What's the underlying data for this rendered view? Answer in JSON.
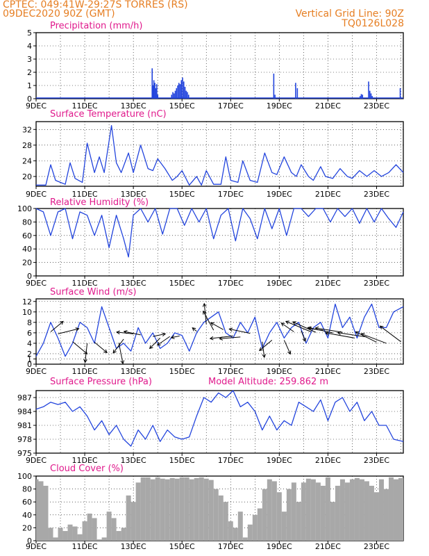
{
  "header": {
    "line1": "CPTEC:   049:41W-29:27S   TORRES (RS)",
    "line2": "09DEC2020 90Z (GMT)",
    "grid_line": "Vertical Grid Line: 90Z",
    "code": "TQ0126L028"
  },
  "x_ticks": [
    "9DEC",
    "11DEC",
    "13DEC",
    "15DEC",
    "17DEC",
    "19DEC",
    "21DEC",
    "23DEC"
  ],
  "colors": {
    "series": "#2244dd",
    "title": "#e0198c",
    "header": "#e67e22",
    "cloud": "#a8a8a8"
  },
  "chart_data": [
    {
      "type": "bar",
      "title": "Precipitation (mm/h)",
      "ylim": [
        0,
        5
      ],
      "yticks": [
        0,
        1,
        2,
        3,
        4,
        5
      ],
      "x_range_days": [
        9,
        24.1
      ],
      "events": [
        [
          13.75,
          2.3
        ],
        [
          13.78,
          1.0
        ],
        [
          13.82,
          1.4
        ],
        [
          13.86,
          1.2
        ],
        [
          13.9,
          0.8
        ],
        [
          13.94,
          1.1
        ],
        [
          13.98,
          0.3
        ],
        [
          14.55,
          0.3
        ],
        [
          14.6,
          0.5
        ],
        [
          14.65,
          0.4
        ],
        [
          14.7,
          0.6
        ],
        [
          14.75,
          0.8
        ],
        [
          14.8,
          1.0
        ],
        [
          14.85,
          1.2
        ],
        [
          14.9,
          1.1
        ],
        [
          14.95,
          1.4
        ],
        [
          15.0,
          1.6
        ],
        [
          15.05,
          1.3
        ],
        [
          15.1,
          0.9
        ],
        [
          15.15,
          0.6
        ],
        [
          15.2,
          0.5
        ],
        [
          15.25,
          0.3
        ],
        [
          18.75,
          1.9
        ],
        [
          18.8,
          0.3
        ],
        [
          19.65,
          1.2
        ],
        [
          19.72,
          0.8
        ],
        [
          22.3,
          0.2
        ],
        [
          22.35,
          0.35
        ],
        [
          22.4,
          0.3
        ],
        [
          22.65,
          1.3
        ],
        [
          22.7,
          0.6
        ],
        [
          22.75,
          0.4
        ],
        [
          22.8,
          0.2
        ],
        [
          23.95,
          0.8
        ]
      ]
    },
    {
      "type": "line",
      "title": "Surface Temperature (nC)",
      "ylim": [
        17.5,
        34
      ],
      "yticks": [
        20,
        24,
        28,
        32
      ],
      "x": [
        9,
        9.4,
        9.6,
        9.8,
        10.0,
        10.2,
        10.4,
        10.6,
        10.9,
        11.1,
        11.4,
        11.6,
        11.8,
        12.1,
        12.3,
        12.5,
        12.8,
        13.0,
        13.3,
        13.6,
        13.8,
        14.0,
        14.3,
        14.6,
        14.8,
        15.0,
        15.3,
        15.6,
        15.8,
        16.0,
        16.3,
        16.6,
        16.8,
        17.0,
        17.3,
        17.5,
        17.8,
        18.1,
        18.4,
        18.7,
        18.9,
        19.2,
        19.5,
        19.7,
        19.9,
        20.2,
        20.4,
        20.7,
        20.9,
        21.2,
        21.5,
        21.8,
        22.0,
        22.3,
        22.6,
        22.9,
        23.2,
        23.5,
        23.8,
        24.1
      ],
      "y": [
        17.8,
        17.8,
        23,
        19,
        18.5,
        18.0,
        23.5,
        19.5,
        18.5,
        28.5,
        21,
        25,
        21,
        33,
        23.5,
        21,
        26,
        21,
        28,
        22,
        21.5,
        24.5,
        22,
        19,
        20,
        21.5,
        17.8,
        20,
        17.8,
        21.5,
        18,
        18,
        25,
        19,
        18.5,
        24,
        19,
        18.5,
        26,
        21,
        20.5,
        25,
        21,
        20,
        23,
        20,
        19,
        22.5,
        20,
        19.5,
        22,
        20,
        19.5,
        21.5,
        20,
        21.5,
        20,
        21,
        23,
        21
      ]
    },
    {
      "type": "line",
      "title": "Relative Humidity (%)",
      "ylim": [
        0,
        100
      ],
      "yticks": [
        0,
        20,
        40,
        60,
        80,
        100
      ],
      "x": [
        9,
        9.3,
        9.6,
        9.9,
        10.2,
        10.5,
        10.8,
        11.1,
        11.4,
        11.7,
        12.0,
        12.3,
        12.6,
        12.8,
        13.0,
        13.3,
        13.6,
        13.9,
        14.2,
        14.5,
        14.8,
        15.1,
        15.4,
        15.7,
        16.0,
        16.3,
        16.6,
        16.9,
        17.2,
        17.5,
        17.8,
        18.1,
        18.4,
        18.7,
        19.0,
        19.3,
        19.6,
        19.9,
        20.2,
        20.5,
        20.8,
        21.1,
        21.4,
        21.7,
        22.0,
        22.3,
        22.6,
        22.9,
        23.2,
        23.5,
        23.8,
        24.1
      ],
      "y": [
        100,
        95,
        60,
        95,
        100,
        55,
        95,
        90,
        60,
        90,
        42,
        90,
        55,
        28,
        90,
        100,
        80,
        100,
        62,
        100,
        100,
        75,
        100,
        80,
        100,
        55,
        90,
        100,
        52,
        100,
        85,
        55,
        100,
        70,
        100,
        60,
        100,
        100,
        88,
        100,
        100,
        80,
        100,
        88,
        100,
        78,
        100,
        80,
        100,
        85,
        72,
        95
      ]
    },
    {
      "type": "line",
      "title": "Surface Wind (m/s)",
      "ylim": [
        0,
        12.5
      ],
      "yticks": [
        0,
        1,
        2,
        4,
        6,
        8,
        10,
        12
      ],
      "x": [
        9,
        9.3,
        9.6,
        9.9,
        10.2,
        10.5,
        10.8,
        11.1,
        11.4,
        11.7,
        12.0,
        12.3,
        12.6,
        12.9,
        13.2,
        13.5,
        13.8,
        14.1,
        14.4,
        14.7,
        15.0,
        15.3,
        15.6,
        15.9,
        16.2,
        16.5,
        16.8,
        17.1,
        17.4,
        17.7,
        18.0,
        18.3,
        18.6,
        18.9,
        19.2,
        19.5,
        19.8,
        20.1,
        20.4,
        20.7,
        21.0,
        21.3,
        21.6,
        21.9,
        22.2,
        22.5,
        22.8,
        23.1,
        23.4,
        23.7,
        24.1
      ],
      "y": [
        1.5,
        4,
        8,
        5,
        1.5,
        4,
        8,
        7,
        4,
        11,
        7,
        3,
        4,
        2.5,
        7,
        4,
        6,
        3,
        4,
        6,
        5.5,
        2.5,
        6,
        8,
        9,
        10,
        6,
        5,
        8,
        6,
        9,
        3,
        6,
        8,
        5,
        7,
        8,
        4,
        7,
        8,
        5,
        11.5,
        7,
        9,
        5,
        9,
        11.5,
        7,
        7,
        10,
        11
      ]
    },
    {
      "type": "line",
      "title": "Surface Pressure (hPa)",
      "annotation": "Model Altitude: 259.862 m",
      "ylim": [
        975,
        988.5
      ],
      "yticks": [
        975,
        978,
        981,
        984,
        987
      ],
      "x": [
        9,
        9.3,
        9.6,
        9.9,
        10.2,
        10.5,
        10.8,
        11.1,
        11.4,
        11.7,
        12.0,
        12.3,
        12.6,
        12.9,
        13.2,
        13.5,
        13.8,
        14.1,
        14.4,
        14.7,
        15.0,
        15.3,
        15.6,
        15.9,
        16.2,
        16.5,
        16.8,
        17.1,
        17.4,
        17.7,
        18.0,
        18.3,
        18.6,
        18.9,
        19.2,
        19.5,
        19.8,
        20.1,
        20.4,
        20.7,
        21.0,
        21.3,
        21.6,
        21.9,
        22.2,
        22.5,
        22.8,
        23.1,
        23.4,
        23.7,
        24.1
      ],
      "y": [
        984.5,
        985,
        986,
        985.5,
        986,
        984,
        985,
        983,
        980,
        982,
        979,
        981,
        978,
        976.5,
        980,
        978,
        981,
        977.5,
        980,
        978.5,
        978,
        978.5,
        983,
        987,
        986,
        988,
        987,
        988.5,
        985,
        986,
        984,
        980,
        983,
        980,
        982,
        981,
        986,
        985,
        984,
        986.5,
        982,
        986,
        987,
        984,
        986,
        982,
        984,
        981,
        981,
        978,
        977.5
      ]
    },
    {
      "type": "area",
      "title": "Cloud Cover (%)",
      "ylim": [
        0,
        100
      ],
      "yticks": [
        0,
        20,
        40,
        60,
        80,
        100
      ],
      "x": [
        9,
        9.1,
        9.3,
        9.5,
        9.7,
        9.9,
        10.1,
        10.3,
        10.5,
        10.7,
        10.9,
        11.1,
        11.3,
        11.5,
        11.7,
        11.9,
        12.1,
        12.3,
        12.5,
        12.7,
        12.9,
        13.1,
        13.3,
        13.5,
        13.7,
        13.9,
        14.1,
        14.3,
        14.5,
        14.7,
        14.9,
        15.1,
        15.3,
        15.5,
        15.7,
        15.9,
        16.1,
        16.3,
        16.5,
        16.7,
        16.9,
        17.1,
        17.3,
        17.5,
        17.7,
        17.9,
        18.1,
        18.3,
        18.5,
        18.7,
        18.9,
        19.1,
        19.3,
        19.5,
        19.7,
        19.9,
        20.1,
        20.3,
        20.5,
        20.7,
        20.9,
        21.1,
        21.3,
        21.5,
        21.7,
        21.9,
        22.1,
        22.3,
        22.5,
        22.7,
        22.9,
        23.1,
        23.3,
        23.5,
        23.7,
        23.9,
        24.1
      ],
      "y": [
        95,
        92,
        85,
        20,
        5,
        20,
        15,
        25,
        22,
        10,
        30,
        42,
        35,
        2,
        5,
        45,
        35,
        15,
        20,
        70,
        60,
        90,
        98,
        98,
        95,
        98,
        96,
        95,
        97,
        96,
        98,
        98,
        95,
        97,
        98,
        96,
        94,
        80,
        70,
        60,
        30,
        20,
        45,
        5,
        25,
        40,
        50,
        80,
        95,
        92,
        75,
        45,
        80,
        90,
        60,
        90,
        96,
        95,
        90,
        85,
        98,
        60,
        85,
        95,
        90,
        95,
        97,
        95,
        92,
        85,
        75,
        95,
        80,
        98,
        95,
        97,
        98
      ]
    }
  ],
  "wind_arrows": [
    [
      9.6,
      6.2,
      0.3,
      -0.6
    ],
    [
      9.9,
      5.8,
      0.5,
      -0.3
    ],
    [
      10.5,
      4.3,
      0.35,
      0.7
    ],
    [
      11.1,
      4,
      -0.05,
      1.1
    ],
    [
      11.4,
      4.2,
      0.3,
      0.6
    ],
    [
      12.4,
      4.1,
      0.1,
      1.2
    ],
    [
      12.6,
      4.8,
      -0.25,
      0.8
    ],
    [
      13,
      5.8,
      -0.4,
      -0.1
    ],
    [
      13.3,
      5.6,
      -0.4,
      -0.2
    ],
    [
      13.8,
      5.3,
      0.3,
      -0.15
    ],
    [
      14.1,
      5,
      -0.25,
      0.6
    ],
    [
      14.5,
      5.3,
      -0.3,
      0.5
    ],
    [
      14.9,
      5.4,
      -0.2,
      0.1
    ],
    [
      15.6,
      6.3,
      -0.1,
      -0.2
    ],
    [
      16,
      7.6,
      -0.05,
      -1.2
    ],
    [
      16.3,
      6.5,
      -0.25,
      -1.1
    ],
    [
      16.7,
      6.6,
      -0.3,
      -0.4
    ],
    [
      17.1,
      5.4,
      -0.55,
      0.15
    ],
    [
      17.4,
      5.2,
      -0.5,
      0.1
    ],
    [
      17.8,
      5.9,
      -0.5,
      -0.25
    ],
    [
      18.3,
      4.3,
      0.05,
      0.9
    ],
    [
      18.7,
      4.6,
      -0.3,
      0.6
    ],
    [
      19.2,
      4.6,
      0.15,
      0.8
    ],
    [
      19.6,
      6.2,
      -0.3,
      -0.5
    ],
    [
      19.9,
      6.4,
      0.1,
      0.6
    ],
    [
      20.3,
      6.2,
      -0.6,
      -0.6
    ],
    [
      20.5,
      6.1,
      -0.55,
      -0.6
    ],
    [
      20.8,
      6.5,
      -0.35,
      -0.1
    ],
    [
      21.2,
      6,
      -0.6,
      -0.3
    ],
    [
      21.6,
      6.1,
      -0.65,
      -0.25
    ],
    [
      22.1,
      5,
      -0.7,
      -0.3
    ],
    [
      22.6,
      5.2,
      -0.7,
      -0.25
    ],
    [
      23,
      4.2,
      -0.5,
      -0.6
    ],
    [
      23.4,
      4,
      -0.6,
      -0.55
    ],
    [
      24,
      4.3,
      -0.5,
      -0.9
    ]
  ]
}
